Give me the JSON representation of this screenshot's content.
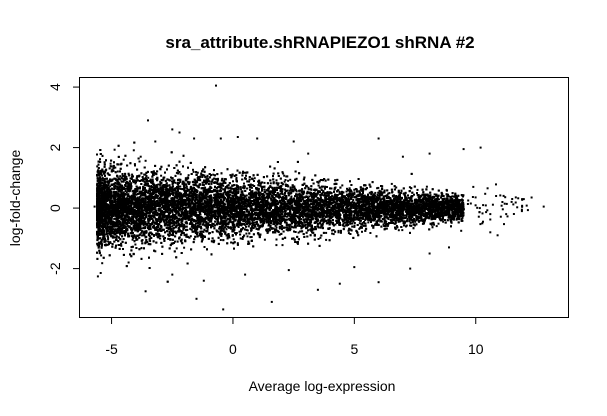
{
  "chart_data": {
    "type": "scatter",
    "title": "sra_attribute.shRNAPIEZO1 shRNA #2",
    "xlabel": "Average log-expression",
    "ylabel": "log-fold-change",
    "xlim": [
      -6.3,
      13.8
    ],
    "ylim": [
      -3.6,
      4.3
    ],
    "x_ticks": [
      -5,
      0,
      5,
      10
    ],
    "y_ticks": [
      -2,
      0,
      2,
      4
    ],
    "x_tick_labels": [
      "-5",
      "0",
      "5",
      "10"
    ],
    "y_tick_labels": [
      "-2",
      "0",
      "2",
      "4"
    ],
    "grid": false,
    "legend": "none",
    "point_color": "#000000",
    "points": [
      [
        -0.7,
        4.05
      ],
      [
        -3.5,
        2.9
      ],
      [
        -2.5,
        2.6
      ],
      [
        -2.2,
        2.5
      ],
      [
        -1.6,
        2.3
      ],
      [
        -0.5,
        2.3
      ],
      [
        0.2,
        2.35
      ],
      [
        1.0,
        2.3
      ],
      [
        6.0,
        2.3
      ],
      [
        -3.2,
        2.2
      ],
      [
        2.5,
        2.2
      ],
      [
        9.5,
        1.95
      ],
      [
        10.2,
        2.0
      ],
      [
        8.1,
        1.8
      ],
      [
        7.0,
        1.7
      ],
      [
        -4.5,
        1.6
      ],
      [
        -3.8,
        1.7
      ],
      [
        3.1,
        1.8
      ],
      [
        12.3,
        0.35
      ],
      [
        12.8,
        0.05
      ],
      [
        11.5,
        0.3
      ],
      [
        11.9,
        -0.1
      ],
      [
        11.1,
        0.2
      ],
      [
        10.6,
        -0.2
      ],
      [
        10.9,
        -0.9
      ],
      [
        10.6,
        -0.8
      ],
      [
        9.9,
        0.7
      ],
      [
        10.3,
        -0.45
      ],
      [
        9.4,
        -0.75
      ],
      [
        8.8,
        0.6
      ],
      [
        -0.4,
        -3.35
      ],
      [
        1.6,
        -3.1
      ],
      [
        -1.5,
        -3.0
      ],
      [
        -3.6,
        -2.75
      ],
      [
        3.5,
        -2.7
      ],
      [
        4.4,
        -2.5
      ],
      [
        -1.2,
        -2.4
      ],
      [
        0.5,
        -2.2
      ],
      [
        6.0,
        -2.45
      ],
      [
        7.3,
        -2.0
      ],
      [
        -2.5,
        -2.2
      ],
      [
        -4.3,
        -1.8
      ],
      [
        2.3,
        -2.05
      ],
      [
        5.0,
        -1.95
      ],
      [
        8.1,
        -1.5
      ],
      [
        8.9,
        -1.3
      ],
      [
        -5.5,
        0.3
      ],
      [
        -5.6,
        -0.1
      ],
      [
        -5.4,
        0.1
      ],
      [
        -5.7,
        0.05
      ]
    ],
    "cloud": {
      "x_range": [
        -5.6,
        9.5
      ],
      "sd_at_left": 0.65,
      "sd_at_right": 0.2,
      "count": 16000
    }
  }
}
